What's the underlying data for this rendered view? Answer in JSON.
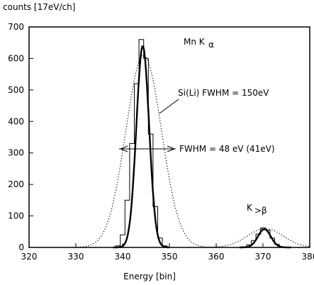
{
  "chart_data": {
    "type": "line",
    "ylabel": "counts [17eV/ch]",
    "xlabel": "Energy [bin]",
    "xlim": [
      320,
      380
    ],
    "ylim": [
      0,
      700
    ],
    "x_ticks": [
      320,
      330,
      340,
      350,
      360,
      370,
      380
    ],
    "y_ticks": [
      0,
      100,
      200,
      300,
      400,
      500,
      600,
      700
    ],
    "grid": false,
    "series": [
      {
        "style": "solid-histogram",
        "x": [
          339,
          340,
          341,
          342,
          343,
          344,
          345,
          346,
          347,
          348,
          349,
          366,
          367,
          368,
          369,
          370,
          371,
          372,
          373,
          374
        ],
        "values": [
          5,
          40,
          150,
          330,
          520,
          660,
          600,
          360,
          130,
          30,
          5,
          2,
          8,
          22,
          42,
          62,
          55,
          30,
          10,
          2
        ]
      },
      {
        "style": "dotted-gaussian",
        "center": 344.5,
        "amplitude": 610,
        "fwhm": 9,
        "center2": 370.5,
        "amplitude2": 60,
        "fwhm2": 9
      }
    ],
    "annotations": {
      "mn_ka": "Mn  K",
      "mn_ka_sub": "α",
      "si_li": "Si(Li) FWHM = 150eV",
      "fwhm": "FWHM = 48 eV  (41eV)",
      "kb": "K",
      "kb_sub": ">β"
    }
  }
}
